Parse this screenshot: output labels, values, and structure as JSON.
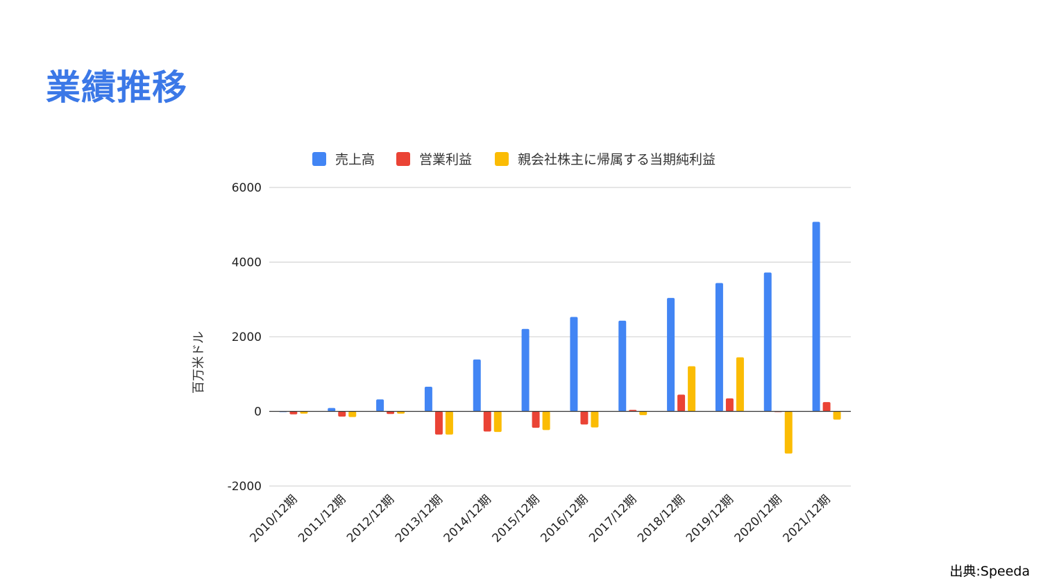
{
  "page": {
    "title": "業績推移",
    "source": "出典:Speeda"
  },
  "chart_data": {
    "type": "bar",
    "title": "",
    "xlabel": "",
    "ylabel": "百万米ドル",
    "ylim": [
      -2000,
      6000
    ],
    "yticks": [
      -2000,
      0,
      2000,
      4000,
      6000
    ],
    "ytick_labels": [
      "-2000",
      "0",
      "2000",
      "4000",
      "6000"
    ],
    "grid": true,
    "legend_position": "top",
    "categories": [
      "2010/12期",
      "2011/12期",
      "2012/12期",
      "2013/12期",
      "2014/12期",
      "2015/12期",
      "2016/12期",
      "2017/12期",
      "2018/12期",
      "2019/12期",
      "2020/12期",
      "2021/12期"
    ],
    "series": [
      {
        "name": "売上高",
        "color": "#4285f4",
        "values": [
          10,
          90,
          320,
          660,
          1390,
          2210,
          2530,
          2430,
          3040,
          3440,
          3720,
          5080
        ]
      },
      {
        "name": "営業利益",
        "color": "#ea4335",
        "values": [
          -80,
          -140,
          -70,
          -620,
          -540,
          -440,
          -350,
          40,
          450,
          350,
          10,
          250
        ]
      },
      {
        "name": "親会社株主に帰属する当期純利益",
        "color": "#fbbc04",
        "values": [
          -60,
          -150,
          -60,
          -620,
          -550,
          -500,
          -430,
          -100,
          1210,
          1450,
          -1130,
          -220
        ]
      }
    ]
  }
}
